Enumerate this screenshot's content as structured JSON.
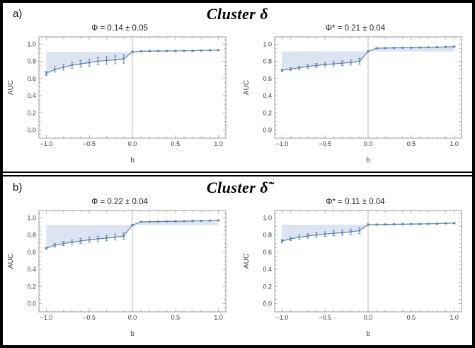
{
  "figure": {
    "panels": [
      {
        "label": "a)",
        "title": "Cluster δ"
      },
      {
        "label": "b)",
        "title": "Cluster δ̃"
      }
    ]
  },
  "colors": {
    "curve": "#5e81b5",
    "band": "#dce4f1",
    "vline": "#bdbdbd",
    "frame": "#9a9a9a",
    "tick_text": "#3c3c3c",
    "panel_border": "#000000"
  },
  "chart_data": [
    {
      "type": "line",
      "title": "Φ = 0.14 ± 0.05",
      "xlabel": "b",
      "ylabel": "AUC",
      "x": [
        -1.0,
        -0.9,
        -0.8,
        -0.7,
        -0.6,
        -0.5,
        -0.4,
        -0.3,
        -0.2,
        -0.1,
        0.0,
        0.1,
        0.2,
        0.3,
        0.4,
        0.5,
        0.6,
        0.7,
        0.8,
        0.9,
        1.0
      ],
      "y": [
        0.66,
        0.705,
        0.73,
        0.755,
        0.77,
        0.785,
        0.8,
        0.81,
        0.818,
        0.828,
        0.91,
        0.918,
        0.919,
        0.92,
        0.921,
        0.922,
        0.923,
        0.924,
        0.926,
        0.928,
        0.93
      ],
      "yerr": [
        0.025,
        0.03,
        0.033,
        0.036,
        0.038,
        0.04,
        0.042,
        0.044,
        0.046,
        0.05,
        0.01,
        0.007,
        0.007,
        0.007,
        0.007,
        0.007,
        0.007,
        0.007,
        0.007,
        0.007,
        0.007
      ],
      "band": {
        "x_range": [
          -1.0,
          0.0
        ],
        "level": 0.91
      },
      "vline_x": 0.0,
      "xlim": [
        -1.085,
        1.085
      ],
      "ylim": [
        -0.095,
        1.085
      ],
      "xticks": [
        -1.0,
        -0.5,
        0.0,
        0.5,
        1.0
      ],
      "xtick_labels": [
        "−1.0",
        "−0.5",
        "0.0",
        "0.5",
        "1.0"
      ],
      "yticks": [
        0.0,
        0.2,
        0.4,
        0.6,
        0.8,
        1.0
      ],
      "ytick_labels": [
        "0.0",
        "0.2",
        "0.4",
        "0.6",
        "0.8",
        "1.0"
      ],
      "grid": false,
      "legend": false
    },
    {
      "type": "line",
      "title": "Φ* = 0.21 ± 0.04",
      "xlabel": "b",
      "ylabel": "AUC",
      "x": [
        -1.0,
        -0.9,
        -0.8,
        -0.7,
        -0.6,
        -0.5,
        -0.4,
        -0.3,
        -0.2,
        -0.1,
        0.0,
        0.1,
        0.2,
        0.3,
        0.4,
        0.5,
        0.6,
        0.7,
        0.8,
        0.9,
        1.0
      ],
      "y": [
        0.695,
        0.71,
        0.725,
        0.74,
        0.752,
        0.762,
        0.77,
        0.778,
        0.787,
        0.8,
        0.915,
        0.953,
        0.955,
        0.957,
        0.958,
        0.959,
        0.961,
        0.963,
        0.965,
        0.968,
        0.972
      ],
      "yerr": [
        0.012,
        0.015,
        0.018,
        0.02,
        0.022,
        0.024,
        0.026,
        0.027,
        0.03,
        0.035,
        0.01,
        0.006,
        0.006,
        0.006,
        0.006,
        0.006,
        0.006,
        0.006,
        0.006,
        0.006,
        0.006
      ],
      "band": {
        "x_range": [
          -1.0,
          1.0
        ],
        "level": 0.915
      },
      "vline_x": 0.0,
      "xlim": [
        -1.085,
        1.085
      ],
      "ylim": [
        -0.095,
        1.085
      ],
      "xticks": [
        -1.0,
        -0.5,
        0.0,
        0.5,
        1.0
      ],
      "xtick_labels": [
        "−1.0",
        "−0.5",
        "0.0",
        "0.5",
        "1.0"
      ],
      "yticks": [
        0.0,
        0.2,
        0.4,
        0.6,
        0.8,
        1.0
      ],
      "ytick_labels": [
        "0.0",
        "0.2",
        "0.4",
        "0.6",
        "0.8",
        "1.0"
      ],
      "grid": false,
      "legend": false
    },
    {
      "type": "line",
      "title": "Φ = 0.22 ± 0.04",
      "xlabel": "b",
      "ylabel": "AUC",
      "x": [
        -1.0,
        -0.9,
        -0.8,
        -0.7,
        -0.6,
        -0.5,
        -0.4,
        -0.3,
        -0.2,
        -0.1,
        0.0,
        0.1,
        0.2,
        0.3,
        0.4,
        0.5,
        0.6,
        0.7,
        0.8,
        0.9,
        1.0
      ],
      "y": [
        0.645,
        0.68,
        0.7,
        0.716,
        0.73,
        0.744,
        0.755,
        0.764,
        0.774,
        0.788,
        0.915,
        0.953,
        0.955,
        0.956,
        0.958,
        0.959,
        0.961,
        0.963,
        0.965,
        0.967,
        0.97
      ],
      "yerr": [
        0.012,
        0.02,
        0.024,
        0.027,
        0.03,
        0.031,
        0.032,
        0.032,
        0.033,
        0.038,
        0.01,
        0.006,
        0.006,
        0.006,
        0.006,
        0.006,
        0.006,
        0.006,
        0.006,
        0.006,
        0.006
      ],
      "band": {
        "x_range": [
          -1.0,
          1.0
        ],
        "level": 0.915
      },
      "vline_x": 0.0,
      "xlim": [
        -1.085,
        1.085
      ],
      "ylim": [
        -0.095,
        1.085
      ],
      "xticks": [
        -1.0,
        -0.5,
        0.0,
        0.5,
        1.0
      ],
      "xtick_labels": [
        "−1.0",
        "−0.5",
        "0.0",
        "0.5",
        "1.0"
      ],
      "yticks": [
        0.0,
        0.2,
        0.4,
        0.6,
        0.8,
        1.0
      ],
      "ytick_labels": [
        "0.0",
        "0.2",
        "0.4",
        "0.6",
        "0.8",
        "1.0"
      ],
      "grid": false,
      "legend": false
    },
    {
      "type": "line",
      "title": "Φ* = 0.11 ± 0.04",
      "xlabel": "b",
      "ylabel": "AUC",
      "x": [
        -1.0,
        -0.9,
        -0.8,
        -0.7,
        -0.6,
        -0.5,
        -0.4,
        -0.3,
        -0.2,
        -0.1,
        0.0,
        0.1,
        0.2,
        0.3,
        0.4,
        0.5,
        0.6,
        0.7,
        0.8,
        0.9,
        1.0
      ],
      "y": [
        0.73,
        0.755,
        0.773,
        0.788,
        0.8,
        0.81,
        0.819,
        0.827,
        0.837,
        0.85,
        0.92,
        0.921,
        0.922,
        0.924,
        0.925,
        0.927,
        0.928,
        0.93,
        0.932,
        0.935,
        0.938
      ],
      "yerr": [
        0.022,
        0.022,
        0.024,
        0.025,
        0.026,
        0.027,
        0.028,
        0.029,
        0.031,
        0.034,
        0.01,
        0.008,
        0.008,
        0.008,
        0.008,
        0.008,
        0.008,
        0.008,
        0.008,
        0.008,
        0.008
      ],
      "band": {
        "x_range": [
          -1.0,
          0.0
        ],
        "level": 0.92
      },
      "vline_x": 0.0,
      "xlim": [
        -1.085,
        1.085
      ],
      "ylim": [
        -0.095,
        1.085
      ],
      "xticks": [
        -1.0,
        -0.5,
        0.0,
        0.5,
        1.0
      ],
      "xtick_labels": [
        "−1.0",
        "−0.5",
        "0.0",
        "0.5",
        "1.0"
      ],
      "yticks": [
        0.0,
        0.2,
        0.4,
        0.6,
        0.8,
        1.0
      ],
      "ytick_labels": [
        "0.0",
        "0.2",
        "0.4",
        "0.6",
        "0.8",
        "1.0"
      ],
      "grid": false,
      "legend": false
    }
  ]
}
